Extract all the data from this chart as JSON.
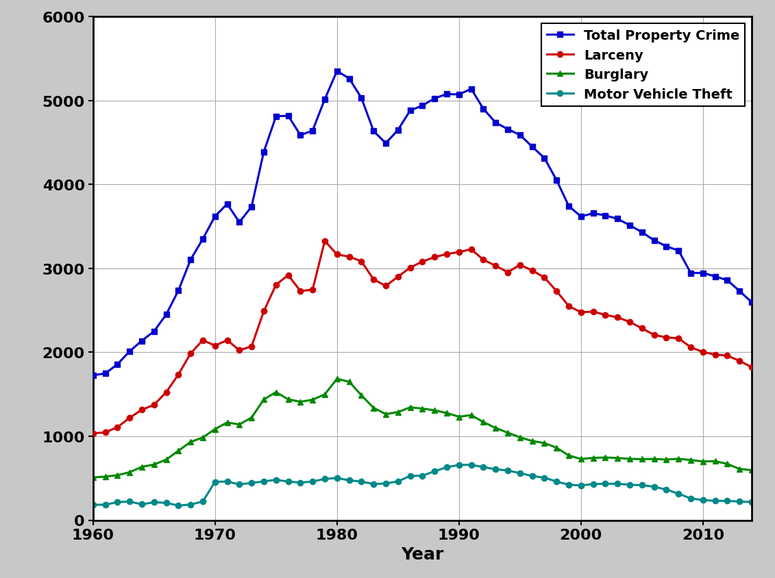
{
  "years": [
    1960,
    1961,
    1962,
    1963,
    1964,
    1965,
    1966,
    1967,
    1968,
    1969,
    1970,
    1971,
    1972,
    1973,
    1974,
    1975,
    1976,
    1977,
    1978,
    1979,
    1980,
    1981,
    1982,
    1983,
    1984,
    1985,
    1986,
    1987,
    1988,
    1989,
    1990,
    1991,
    1992,
    1993,
    1994,
    1995,
    1996,
    1997,
    1998,
    1999,
    2000,
    2001,
    2002,
    2003,
    2004,
    2005,
    2006,
    2007,
    2008,
    2009,
    2010,
    2011,
    2012,
    2013,
    2014
  ],
  "total_property": [
    1726.3,
    1747.9,
    1857.5,
    2012.1,
    2138.2,
    2249.8,
    2450.9,
    2736.2,
    3104.6,
    3351.3,
    3621.0,
    3768.8,
    3550.5,
    3737.3,
    4389.1,
    4811.7,
    4820.3,
    4588.4,
    4642.5,
    5016.6,
    5353.3,
    5263.9,
    5032.5,
    4637.4,
    4492.1,
    4650.5,
    4881.8,
    4940.3,
    5027.1,
    5077.9,
    5073.1,
    5140.2,
    4902.7,
    4737.6,
    4660.0,
    4590.5,
    4451.0,
    4316.3,
    4052.5,
    3743.6,
    3618.3,
    3658.1,
    3630.6,
    3591.2,
    3514.1,
    3431.5,
    3334.5,
    3263.5,
    3212.5,
    2945.2,
    2945.9,
    2905.4,
    2859.0,
    2730.7,
    2596.1
  ],
  "larceny": [
    1034.7,
    1045.5,
    1107.5,
    1219.1,
    1315.5,
    1374.0,
    1524.1,
    1736.0,
    1986.1,
    2145.4,
    2079.3,
    2145.5,
    2024.5,
    2071.9,
    2489.5,
    2804.8,
    2921.3,
    2729.9,
    2747.4,
    3327.6,
    3167.0,
    3139.7,
    3084.8,
    2868.9,
    2791.3,
    2901.2,
    3010.3,
    3081.3,
    3134.9,
    3171.3,
    3194.8,
    3228.8,
    3103.0,
    3032.4,
    2954.0,
    3043.8,
    2975.9,
    2891.8,
    2729.5,
    2550.7,
    2477.3,
    2485.7,
    2445.8,
    2416.5,
    2362.3,
    2286.3,
    2206.8,
    2177.8,
    2167.0,
    2060.9,
    2003.5,
    1974.1,
    1959.3,
    1899.4,
    1821.5
  ],
  "burglary": [
    508.6,
    518.9,
    535.2,
    571.3,
    634.7,
    662.7,
    721.0,
    826.6,
    932.3,
    984.1,
    1085.0,
    1163.5,
    1140.8,
    1222.5,
    1437.7,
    1525.9,
    1439.8,
    1410.9,
    1434.6,
    1499.1,
    1684.1,
    1649.5,
    1488.8,
    1337.7,
    1263.7,
    1287.3,
    1344.6,
    1329.6,
    1309.2,
    1276.3,
    1232.2,
    1252.0,
    1168.2,
    1099.2,
    1042.0,
    987.0,
    943.0,
    918.8,
    863.2,
    770.4,
    728.4,
    741.8,
    747.0,
    740.5,
    730.3,
    726.7,
    729.4,
    722.5,
    730.8,
    716.3,
    699.6,
    702.2,
    670.2,
    610.0,
    596.0
  ],
  "motor_vehicle_theft": [
    183.0,
    183.6,
    214.9,
    221.7,
    188.0,
    213.1,
    205.8,
    173.6,
    186.2,
    221.8,
    457.0,
    459.8,
    426.1,
    442.9,
    461.9,
    480.9,
    459.2,
    447.6,
    460.5,
    490.7,
    502.2,
    474.7,
    458.9,
    430.8,
    437.1,
    462.0,
    527.0,
    529.4,
    582.9,
    630.4,
    657.8,
    659.5,
    631.5,
    606.1,
    591.3,
    560.4,
    525.9,
    505.7,
    459.9,
    422.5,
    412.2,
    430.5,
    432.9,
    433.7,
    421.3,
    416.7,
    398.4,
    363.6,
    314.7,
    258.8,
    238.8,
    229.6,
    229.7,
    221.3,
    216.2
  ],
  "colors": {
    "total_property": "#0000cc",
    "larceny": "#cc0000",
    "burglary": "#008800",
    "motor_vehicle_theft": "#008888"
  },
  "legend_labels": [
    "Total Property Crime",
    "Larceny",
    "Burglary",
    "Motor Vehicle Theft"
  ],
  "xlabel": "Year",
  "ylim": [
    0,
    6000
  ],
  "yticks": [
    0,
    1000,
    2000,
    3000,
    4000,
    5000,
    6000
  ],
  "xticks": [
    1960,
    1970,
    1980,
    1990,
    2000,
    2010
  ],
  "outer_bg": "#c8c8c8",
  "inner_bg": "#ffffff",
  "grid_color": "#aaaaaa"
}
